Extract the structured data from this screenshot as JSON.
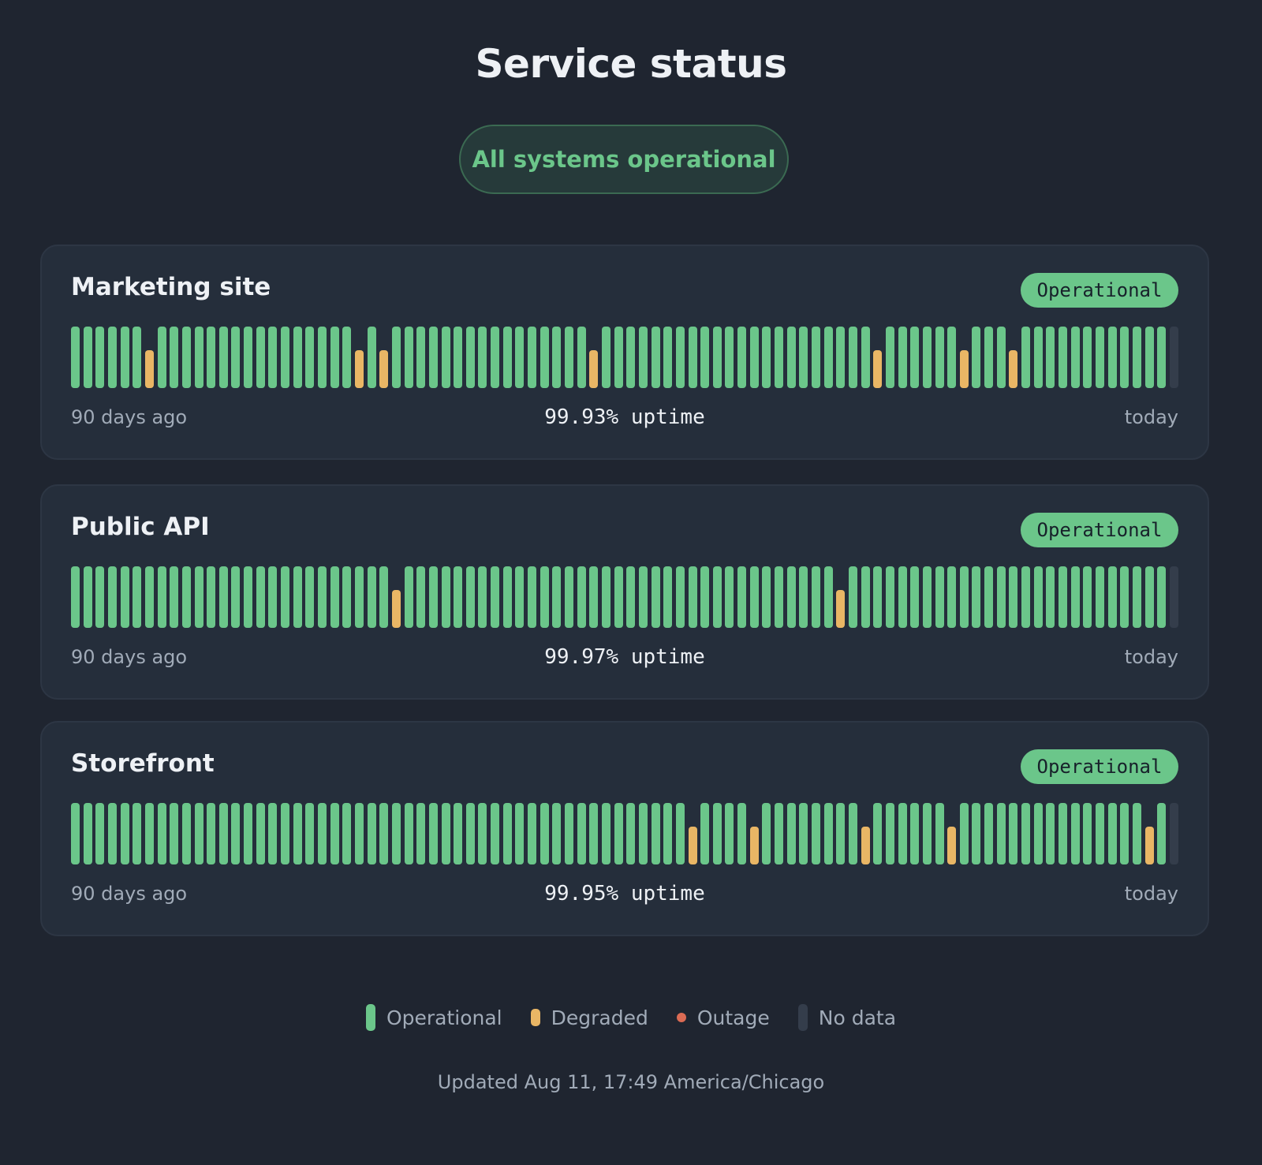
{
  "page": {
    "title": "Service status",
    "overall_status": "All systems operational",
    "updated": "Updated Aug 11, 17:49 America/Chicago"
  },
  "colors": {
    "background": "#1f2530",
    "card": "#252e3b",
    "operational": "#6bc68a",
    "degraded": "#e9b665",
    "outage": "#db6b54",
    "no_data": "#343d4b"
  },
  "services": [
    {
      "name": "Marketing site",
      "status": "Operational",
      "uptime": "99.93% uptime",
      "start_label": "90 days ago",
      "end_label": "today",
      "degraded_days": [
        7,
        24,
        26,
        43,
        66,
        73,
        77
      ],
      "outage_days": [],
      "no_data_days": [
        90
      ]
    },
    {
      "name": "Public API",
      "status": "Operational",
      "uptime": "99.97% uptime",
      "start_label": "90 days ago",
      "end_label": "today",
      "degraded_days": [
        27,
        63
      ],
      "outage_days": [],
      "no_data_days": [
        90
      ]
    },
    {
      "name": "Storefront",
      "status": "Operational",
      "uptime": "99.95% uptime",
      "start_label": "90 days ago",
      "end_label": "today",
      "degraded_days": [
        51,
        56,
        65,
        72,
        88
      ],
      "outage_days": [],
      "no_data_days": [
        90
      ]
    }
  ],
  "legend": [
    {
      "label": "Operational",
      "kind": "op"
    },
    {
      "label": "Degraded",
      "kind": "deg"
    },
    {
      "label": "Outage",
      "kind": "out"
    },
    {
      "label": "No data",
      "kind": "nd"
    }
  ]
}
